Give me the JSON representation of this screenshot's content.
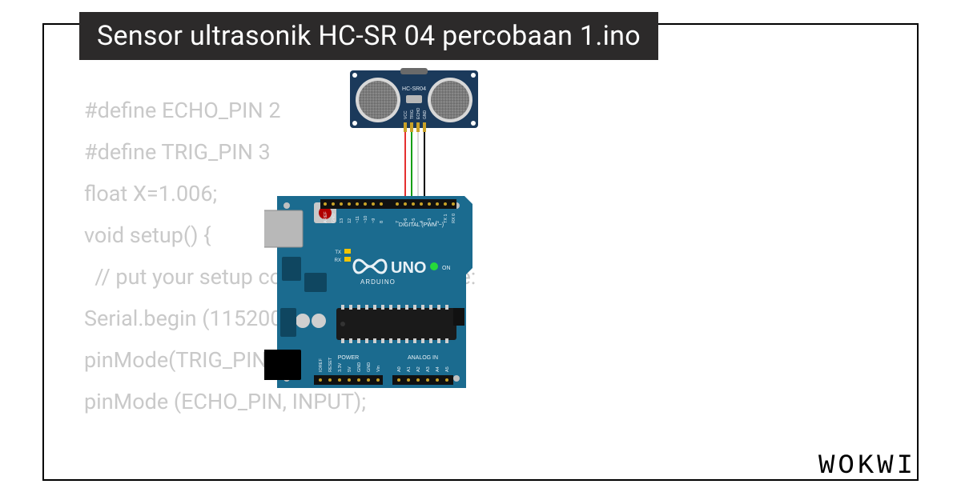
{
  "header": {
    "title": "Sensor ultrasonik HC-SR 04 percobaan 1.ino"
  },
  "code": {
    "lines": [
      "#define ECHO_PIN 2",
      "#define TRIG_PIN 3",
      "float X=1.006;",
      "void setup() {",
      "  // put your setup code here, to run once:",
      "Serial.begin (115200);",
      "pinMode(TRIG_PIN, OUTPUT);",
      "pinMode (ECHO_PIN, INPUT);",
      "",
      "}"
    ],
    "text_color": "#c9c9c9",
    "font_size": 27,
    "line_height": 52
  },
  "sensor": {
    "label": "HC-SR04",
    "board_color": "#1b3a5b",
    "transducer_fill": "#8a8a8a",
    "pins": [
      "VCC",
      "TRIG",
      "ECHO",
      "GND"
    ],
    "pin_font_size": 4
  },
  "arduino": {
    "board_color": "#1b6b8f",
    "label_uno": "UNO",
    "label_arduino": "ARDUINO",
    "label_tx": "TX",
    "label_rx": "RX",
    "label_on": "ON",
    "section_digital": "DIGITAL (PWM ~)",
    "section_power": "POWER",
    "section_analog": "ANALOG IN",
    "digital_labels": [
      "AREF",
      "GND",
      "13",
      "12",
      "~11",
      "~10",
      "~9",
      "8",
      "",
      "7",
      "~6",
      "~5",
      "4",
      "~3",
      "2",
      "TX 1",
      "RX 0"
    ],
    "power_labels": [
      "IOREF",
      "RESET",
      "3.3V",
      "5V",
      "GND",
      "GND",
      "Vin"
    ],
    "analog_labels": [
      "A0",
      "A1",
      "A2",
      "A3",
      "A4",
      "A5"
    ],
    "usb_color": "#b8b8b8",
    "barrel_color": "#000000",
    "reset_button_color": "#b00000",
    "led_on_color": "#26d93a",
    "led_tx_color": "#f2c400",
    "chip_color": "#1a1a1a"
  },
  "wires": [
    {
      "name": "vcc",
      "color": "#e53030",
      "from": "sensor.VCC",
      "to": "arduino.5V"
    },
    {
      "name": "trig",
      "color": "#17a017",
      "from": "sensor.TRIG",
      "to": "arduino.D3"
    },
    {
      "name": "echo",
      "color": "#ffffff",
      "stroke": "#888888",
      "from": "sensor.ECHO",
      "to": "arduino.D2"
    },
    {
      "name": "gnd",
      "color": "#000000",
      "from": "sensor.GND",
      "to": "arduino.GND"
    }
  ],
  "brand": {
    "text": "WOKWI",
    "letter_spacing": 4,
    "font_size": 34
  },
  "colors": {
    "page_bg": "#ffffff",
    "card_border": "#000000",
    "title_bg": "#2c2a2a",
    "title_fg": "#ffffff"
  }
}
